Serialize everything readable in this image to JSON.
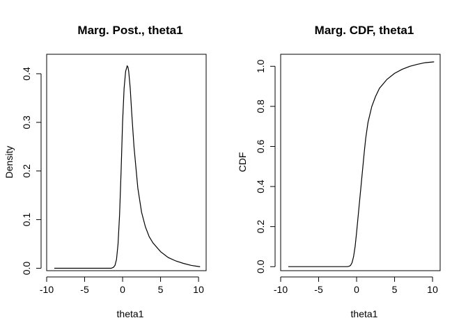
{
  "chart_data": [
    {
      "type": "line",
      "title": "Marg. Post., theta1",
      "xlabel": "theta1",
      "ylabel": "Density",
      "xlim": [
        -10,
        11
      ],
      "ylim": [
        -0.005,
        0.44
      ],
      "xticks": [
        "-10",
        "-5",
        "0",
        "5",
        "10"
      ],
      "yticks": [
        "0.0",
        "0.1",
        "0.2",
        "0.3",
        "0.4"
      ],
      "series": [
        {
          "x": [
            -9,
            -5,
            -3,
            -2,
            -1.5,
            -1.2,
            -1,
            -0.8,
            -0.6,
            -0.4,
            -0.2,
            0,
            0.2,
            0.4,
            0.6,
            0.7,
            0.8,
            1,
            1.2,
            1.5,
            2,
            2.5,
            3,
            3.5,
            4,
            5,
            6,
            7,
            8,
            9,
            10.2
          ],
          "y": [
            0.0,
            0.0,
            0.0,
            0.0,
            0.0,
            0.002,
            0.006,
            0.018,
            0.05,
            0.11,
            0.2,
            0.3,
            0.37,
            0.405,
            0.416,
            0.414,
            0.405,
            0.37,
            0.32,
            0.25,
            0.165,
            0.115,
            0.085,
            0.065,
            0.052,
            0.034,
            0.022,
            0.015,
            0.01,
            0.006,
            0.003
          ]
        }
      ]
    },
    {
      "type": "line",
      "title": "Marg. CDF, theta1",
      "xlabel": "theta1",
      "ylabel": "CDF",
      "xlim": [
        -10,
        11
      ],
      "ylim": [
        -0.02,
        1.06
      ],
      "xticks": [
        "-10",
        "-5",
        "0",
        "5",
        "10"
      ],
      "yticks": [
        "0.0",
        "0.2",
        "0.4",
        "0.6",
        "0.8",
        "1.0"
      ],
      "series": [
        {
          "x": [
            -9,
            -5,
            -3,
            -2,
            -1.5,
            -1.2,
            -1,
            -0.8,
            -0.6,
            -0.4,
            -0.2,
            0,
            0.2,
            0.4,
            0.6,
            0.8,
            1,
            1.2,
            1.5,
            2,
            2.5,
            3,
            4,
            5,
            6,
            7,
            8,
            9,
            10.2
          ],
          "y": [
            0.0,
            0.0,
            0.0,
            0.0,
            0.0,
            0.0,
            0.002,
            0.006,
            0.02,
            0.05,
            0.1,
            0.17,
            0.25,
            0.33,
            0.41,
            0.49,
            0.57,
            0.64,
            0.72,
            0.8,
            0.85,
            0.89,
            0.935,
            0.965,
            0.985,
            1.0,
            1.01,
            1.018,
            1.022
          ]
        }
      ]
    }
  ]
}
